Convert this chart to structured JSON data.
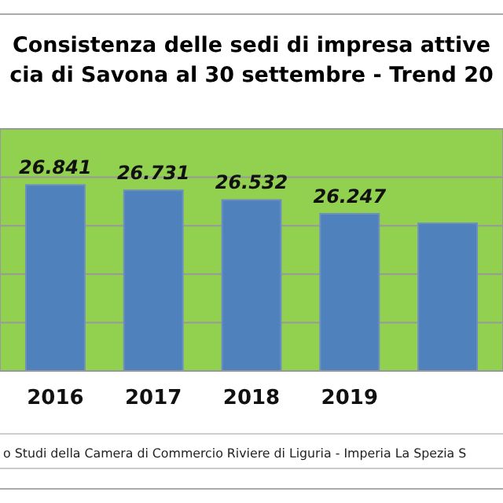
{
  "chart_data": {
    "type": "bar",
    "title": "Consistenza delle sedi di impresa attive",
    "subtitle": "cia di Savona al 30 settembre  - Trend 20",
    "categories": [
      "2016",
      "2017",
      "2018",
      "2019",
      null
    ],
    "values": [
      26841,
      26731,
      26532,
      26247,
      26050
    ],
    "value_labels": [
      "26.841",
      "26.731",
      "26.532",
      "26.247",
      null
    ],
    "color": "#4f81bd",
    "ylim": [
      23000,
      28000
    ],
    "yticks": [
      {
        "value": 23000,
        "label": null
      },
      {
        "value": 24000,
        "label": null
      },
      {
        "value": 25000,
        "label": null
      },
      {
        "value": 26000,
        "label": null
      },
      {
        "value": 27000,
        "label": null
      },
      {
        "value": 28000,
        "label": null
      }
    ],
    "tick_labels": "x",
    "grid": "y",
    "annotations": [
      "o Studi della Camera di Commercio Riviere di Liguria - Imperia La Spezia S"
    ]
  }
}
